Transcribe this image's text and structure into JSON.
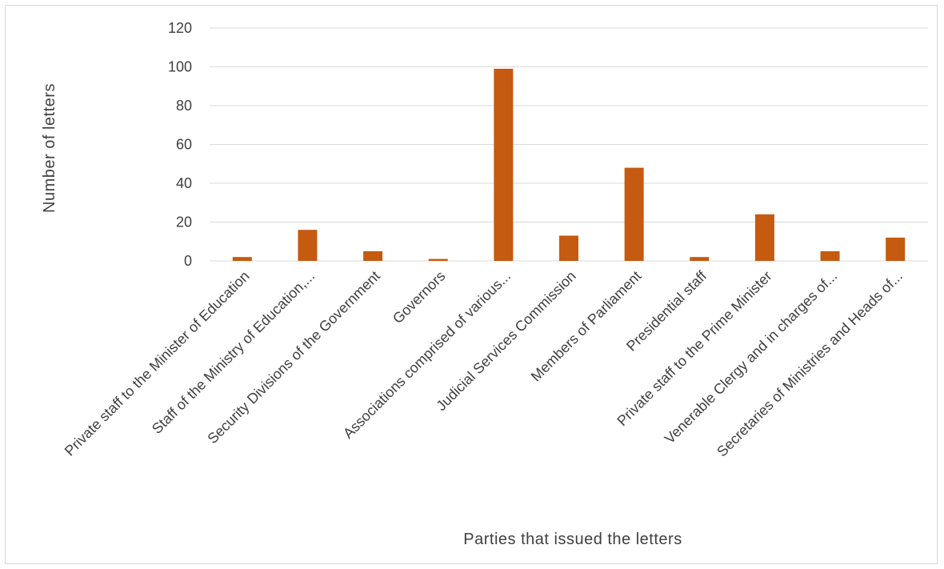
{
  "chart_data": {
    "type": "bar",
    "categories": [
      "Private staff to the Minister of Education",
      "Staff of the Ministry of Education,...",
      "Security Divisions of the Government",
      "Governors",
      "Associations comprised of various...",
      "Judicial Services Commission",
      "Members of Parliament",
      "Presidential staff",
      "Private staff to the Prime Minister",
      "Venerable Clergy and in charges of...",
      "Secretaries of Ministries and Heads of..."
    ],
    "values": [
      2,
      16,
      5,
      1,
      99,
      13,
      48,
      2,
      24,
      5,
      12
    ],
    "xlabel": "Parties that issued the letters",
    "ylabel": "Number  of letters",
    "ylim": [
      0,
      120
    ],
    "yticks": [
      0,
      20,
      40,
      60,
      80,
      100,
      120
    ],
    "grid": true,
    "legend": "none",
    "colors": {
      "bar": "#c55a11",
      "grid": "#d9d9d9",
      "text": "#404040"
    }
  }
}
